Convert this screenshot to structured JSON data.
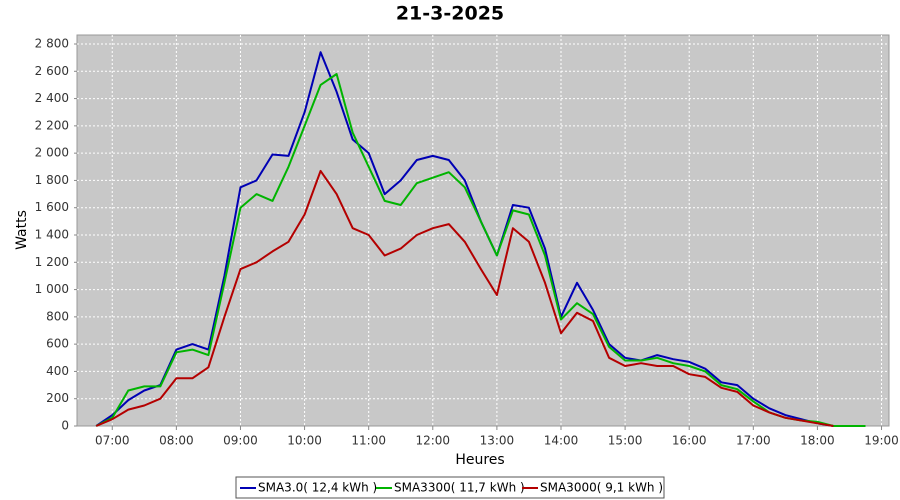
{
  "chart_data": {
    "type": "line",
    "title": "21-3-2025",
    "x_label": "Heures",
    "y_label": "Watts",
    "x": [
      "06:45",
      "07:00",
      "07:15",
      "07:30",
      "07:45",
      "08:00",
      "08:15",
      "08:30",
      "08:45",
      "09:00",
      "09:15",
      "09:30",
      "09:45",
      "10:00",
      "10:15",
      "10:30",
      "10:45",
      "11:00",
      "11:15",
      "11:30",
      "11:45",
      "12:00",
      "12:15",
      "12:30",
      "12:45",
      "13:00",
      "13:15",
      "13:30",
      "13:45",
      "14:00",
      "14:15",
      "14:30",
      "14:45",
      "15:00",
      "15:15",
      "15:30",
      "15:45",
      "16:00",
      "16:15",
      "16:30",
      "16:45",
      "17:00",
      "17:15",
      "17:30",
      "17:45",
      "18:00",
      "18:15",
      "18:30",
      "18:45"
    ],
    "series": [
      {
        "name": "SMA3.0( 12,4 kWh )",
        "color": "#0000b4",
        "values": [
          0,
          80,
          190,
          260,
          300,
          560,
          600,
          560,
          1100,
          1750,
          1800,
          1990,
          1980,
          2300,
          2740,
          2450,
          2100,
          2000,
          1700,
          1800,
          1950,
          1980,
          1950,
          1800,
          1500,
          1250,
          1620,
          1600,
          1300,
          800,
          1050,
          850,
          600,
          500,
          480,
          520,
          490,
          470,
          420,
          320,
          300,
          200,
          130,
          80,
          50,
          20,
          0,
          null,
          null
        ]
      },
      {
        "name": "SMA3300( 11,7 kWh )",
        "color": "#00b400",
        "values": [
          0,
          60,
          260,
          290,
          290,
          540,
          560,
          520,
          1050,
          1600,
          1700,
          1650,
          1900,
          2200,
          2500,
          2580,
          2150,
          1900,
          1650,
          1620,
          1780,
          1820,
          1860,
          1750,
          1500,
          1250,
          1580,
          1550,
          1250,
          780,
          900,
          820,
          580,
          480,
          480,
          500,
          460,
          440,
          400,
          300,
          270,
          180,
          100,
          60,
          40,
          30,
          0,
          0,
          0
        ]
      },
      {
        "name": "SMA3000( 9,1 kWh )",
        "color": "#b40000",
        "values": [
          0,
          50,
          120,
          150,
          200,
          350,
          350,
          430,
          800,
          1150,
          1200,
          1280,
          1350,
          1550,
          1870,
          1700,
          1450,
          1400,
          1250,
          1300,
          1400,
          1450,
          1480,
          1350,
          1150,
          960,
          1450,
          1350,
          1050,
          680,
          830,
          770,
          500,
          440,
          460,
          440,
          440,
          380,
          360,
          280,
          250,
          150,
          100,
          60,
          40,
          20,
          0,
          null,
          null
        ]
      }
    ],
    "xlim": [
      "06:27",
      "19:07"
    ],
    "xticks": [
      "07:00",
      "08:00",
      "09:00",
      "10:00",
      "11:00",
      "12:00",
      "13:00",
      "14:00",
      "15:00",
      "16:00",
      "17:00",
      "18:00",
      "19:00"
    ],
    "ylim": [
      0,
      2866
    ],
    "yticks": [
      0,
      200,
      400,
      600,
      800,
      {
        "value": 1000,
        "label": "1 000"
      },
      {
        "value": 1200,
        "label": "1 200"
      },
      {
        "value": 1400,
        "label": "1 400"
      },
      {
        "value": 1600,
        "label": "1 600"
      },
      {
        "value": 1800,
        "label": "1 800"
      },
      {
        "value": 2000,
        "label": "2 000"
      },
      {
        "value": 2200,
        "label": "2 200"
      },
      {
        "value": 2400,
        "label": "2 400"
      },
      {
        "value": 2600,
        "label": "2 600"
      },
      {
        "value": 2800,
        "label": "2 800"
      }
    ],
    "grid": true
  }
}
